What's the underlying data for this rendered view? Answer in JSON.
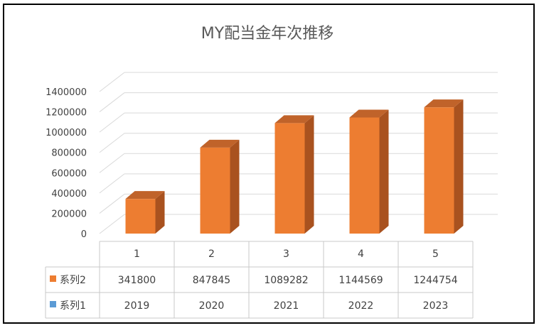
{
  "chart_data": {
    "type": "bar",
    "title": "MY配当金年次推移",
    "categories": [
      "1",
      "2",
      "3",
      "4",
      "5"
    ],
    "series": [
      {
        "name": "系列2",
        "values": [
          341800,
          847845,
          1089282,
          1144569,
          1244754
        ],
        "color": "#ED7D31"
      },
      {
        "name": "系列1",
        "values": [
          2019,
          2020,
          2021,
          2022,
          2023
        ],
        "color": "#5B9BD5"
      }
    ],
    "ylim": [
      0,
      1400000
    ],
    "yticks": [
      "0",
      "200000",
      "400000",
      "600000",
      "800000",
      "1000000",
      "1200000",
      "1400000"
    ],
    "grid": true,
    "legend": "data-table"
  }
}
